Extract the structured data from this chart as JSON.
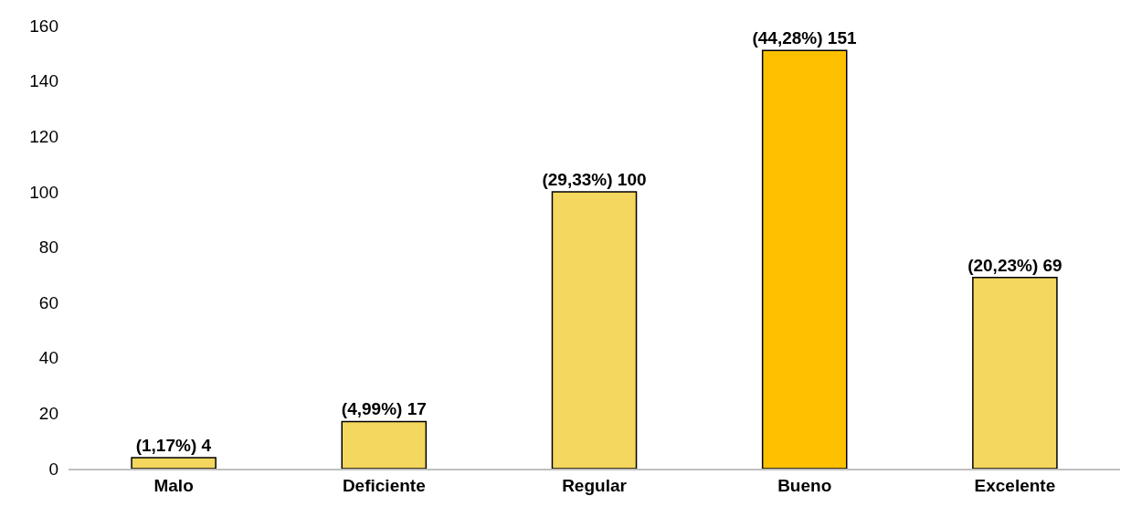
{
  "chart_data": {
    "type": "bar",
    "categories": [
      "Malo",
      "Deficiente",
      "Regular",
      "Bueno",
      "Excelente"
    ],
    "values": [
      4,
      17,
      100,
      151,
      69
    ],
    "colors": [
      "#f4d75e",
      "#f4d75e",
      "#f4d75e",
      "#ffc000",
      "#f4d75e"
    ],
    "value_labels": [
      "(1,17%) 4",
      "(4,99%) 17",
      "(29,33%) 100",
      "(44,28%) 151",
      "(20,23%) 69"
    ],
    "ylim": [
      0,
      160
    ],
    "yticks": [
      0,
      20,
      40,
      60,
      80,
      100,
      120,
      140,
      160
    ],
    "grid": false
  }
}
